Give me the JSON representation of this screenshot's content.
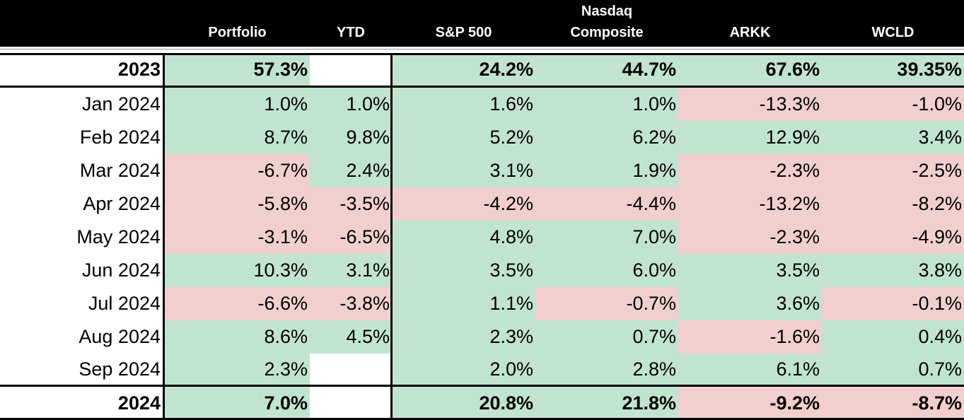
{
  "headers": {
    "portfolio": "Portfolio",
    "ytd": "YTD",
    "sp500": "S&P 500",
    "nasdaq_line1": "Nasdaq",
    "nasdaq_line2": "Composite",
    "arkk": "ARKK",
    "wcld": "WCLD"
  },
  "colors": {
    "positive": "#c1e4d1",
    "negative": "#f2cfcf",
    "header": "#000000"
  },
  "rows": [
    {
      "label": "2023",
      "bold": true,
      "cells": [
        {
          "v": "57.3%",
          "s": "pos"
        },
        {
          "v": "",
          "s": "blank"
        },
        {
          "v": "24.2%",
          "s": "pos"
        },
        {
          "v": "44.7%",
          "s": "pos"
        },
        {
          "v": "67.6%",
          "s": "pos"
        },
        {
          "v": "39.35%",
          "s": "pos"
        }
      ]
    },
    {
      "label": "Jan 2024",
      "bold": false,
      "cells": [
        {
          "v": "1.0%",
          "s": "pos"
        },
        {
          "v": "1.0%",
          "s": "pos"
        },
        {
          "v": "1.6%",
          "s": "pos"
        },
        {
          "v": "1.0%",
          "s": "pos"
        },
        {
          "v": "-13.3%",
          "s": "neg"
        },
        {
          "v": "-1.0%",
          "s": "neg"
        }
      ]
    },
    {
      "label": "Feb 2024",
      "bold": false,
      "cells": [
        {
          "v": "8.7%",
          "s": "pos"
        },
        {
          "v": "9.8%",
          "s": "pos"
        },
        {
          "v": "5.2%",
          "s": "pos"
        },
        {
          "v": "6.2%",
          "s": "pos"
        },
        {
          "v": "12.9%",
          "s": "pos"
        },
        {
          "v": "3.4%",
          "s": "pos"
        }
      ]
    },
    {
      "label": "Mar 2024",
      "bold": false,
      "cells": [
        {
          "v": "-6.7%",
          "s": "neg"
        },
        {
          "v": "2.4%",
          "s": "pos"
        },
        {
          "v": "3.1%",
          "s": "pos"
        },
        {
          "v": "1.9%",
          "s": "pos"
        },
        {
          "v": "-2.3%",
          "s": "neg"
        },
        {
          "v": "-2.5%",
          "s": "neg"
        }
      ]
    },
    {
      "label": "Apr 2024",
      "bold": false,
      "cells": [
        {
          "v": "-5.8%",
          "s": "neg"
        },
        {
          "v": "-3.5%",
          "s": "neg"
        },
        {
          "v": "-4.2%",
          "s": "neg"
        },
        {
          "v": "-4.4%",
          "s": "neg"
        },
        {
          "v": "-13.2%",
          "s": "neg"
        },
        {
          "v": "-8.2%",
          "s": "neg"
        }
      ]
    },
    {
      "label": "May 2024",
      "bold": false,
      "cells": [
        {
          "v": "-3.1%",
          "s": "neg"
        },
        {
          "v": "-6.5%",
          "s": "neg"
        },
        {
          "v": "4.8%",
          "s": "pos"
        },
        {
          "v": "7.0%",
          "s": "pos"
        },
        {
          "v": "-2.3%",
          "s": "neg"
        },
        {
          "v": "-4.9%",
          "s": "neg"
        }
      ]
    },
    {
      "label": "Jun 2024",
      "bold": false,
      "cells": [
        {
          "v": "10.3%",
          "s": "pos"
        },
        {
          "v": "3.1%",
          "s": "pos"
        },
        {
          "v": "3.5%",
          "s": "pos"
        },
        {
          "v": "6.0%",
          "s": "pos"
        },
        {
          "v": "3.5%",
          "s": "pos"
        },
        {
          "v": "3.8%",
          "s": "pos"
        }
      ]
    },
    {
      "label": "Jul 2024",
      "bold": false,
      "cells": [
        {
          "v": "-6.6%",
          "s": "neg"
        },
        {
          "v": "-3.8%",
          "s": "neg"
        },
        {
          "v": "1.1%",
          "s": "pos"
        },
        {
          "v": "-0.7%",
          "s": "neg"
        },
        {
          "v": "3.6%",
          "s": "pos"
        },
        {
          "v": "-0.1%",
          "s": "neg"
        }
      ]
    },
    {
      "label": "Aug 2024",
      "bold": false,
      "cells": [
        {
          "v": "8.6%",
          "s": "pos"
        },
        {
          "v": "4.5%",
          "s": "pos"
        },
        {
          "v": "2.3%",
          "s": "pos"
        },
        {
          "v": "0.7%",
          "s": "pos"
        },
        {
          "v": "-1.6%",
          "s": "neg"
        },
        {
          "v": "0.4%",
          "s": "pos"
        }
      ]
    },
    {
      "label": "Sep 2024",
      "bold": false,
      "cells": [
        {
          "v": "2.3%",
          "s": "pos"
        },
        {
          "v": "",
          "s": "blank"
        },
        {
          "v": "2.0%",
          "s": "pos"
        },
        {
          "v": "2.8%",
          "s": "pos"
        },
        {
          "v": "6.1%",
          "s": "pos"
        },
        {
          "v": "0.7%",
          "s": "pos"
        }
      ]
    },
    {
      "label": "2024",
      "bold": true,
      "cells": [
        {
          "v": "7.0%",
          "s": "pos"
        },
        {
          "v": "",
          "s": "blank"
        },
        {
          "v": "20.8%",
          "s": "pos"
        },
        {
          "v": "21.8%",
          "s": "pos"
        },
        {
          "v": "-9.2%",
          "s": "neg"
        },
        {
          "v": "-8.7%",
          "s": "neg"
        }
      ]
    }
  ]
}
